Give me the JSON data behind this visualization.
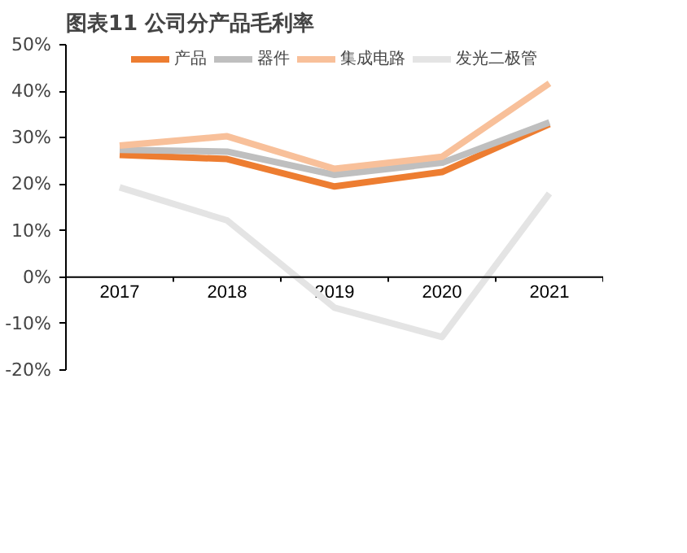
{
  "chart_data": {
    "type": "line",
    "title": "图表11    公司分产品毛利率",
    "categories": [
      "2017",
      "2018",
      "2019",
      "2020",
      "2021"
    ],
    "series": [
      {
        "name": "产品",
        "color": "#ed7d31",
        "values": [
          26.3,
          25.4,
          19.5,
          22.6,
          32.9
        ]
      },
      {
        "name": "器件",
        "color": "#bfbfbf",
        "values": [
          27.4,
          27.0,
          22.0,
          24.6,
          33.3
        ]
      },
      {
        "name": "集成电路",
        "color": "#f8c09a",
        "values": [
          28.3,
          30.3,
          23.3,
          25.9,
          41.7
        ]
      },
      {
        "name": "发光二极管",
        "color": "#e4e4e4",
        "values": [
          19.3,
          12.2,
          -6.6,
          -12.9,
          18.0
        ]
      }
    ],
    "ylim": [
      -20,
      50
    ],
    "yticks": [
      {
        "value": -20,
        "label": "-20%"
      },
      {
        "value": -10,
        "label": "-10%"
      },
      {
        "value": 0,
        "label": "0%"
      },
      {
        "value": 10,
        "label": "10%"
      },
      {
        "value": 20,
        "label": "20%"
      },
      {
        "value": 30,
        "label": "30%"
      },
      {
        "value": 40,
        "label": "40%"
      },
      {
        "value": 50,
        "label": "50%"
      }
    ],
    "grid": false,
    "legend": "top",
    "marker": "none",
    "line_style": "solid"
  }
}
